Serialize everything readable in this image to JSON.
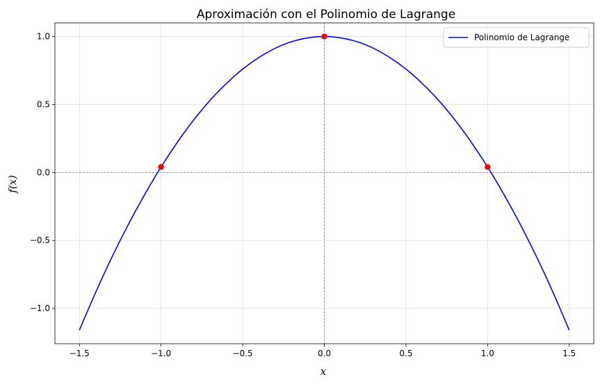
{
  "chart_data": {
    "type": "line",
    "title": "Aproximación con el Polinomio de Lagrange",
    "xlabel": "x",
    "ylabel": "f(x)",
    "xlim": [
      -1.65,
      1.65
    ],
    "ylim": [
      -1.26,
      1.1
    ],
    "x_ticks": [
      -1.5,
      -1.0,
      -0.5,
      0.0,
      0.5,
      1.0,
      1.5
    ],
    "x_tick_labels": [
      "−1.5",
      "−1.0",
      "−0.5",
      "0.0",
      "0.5",
      "1.0",
      "1.5"
    ],
    "y_ticks": [
      -1.0,
      -0.5,
      0.0,
      0.5,
      1.0
    ],
    "y_tick_labels": [
      "−1.0",
      "−0.5",
      "0.0",
      "0.5",
      "1.0"
    ],
    "grid": true,
    "legend_position": "top-right",
    "reference_lines": {
      "x": 0,
      "y": 0
    },
    "series": [
      {
        "name": "Polinomio de Lagrange",
        "color": "#0000ff",
        "x": [
          -1.5,
          -1.4,
          -1.3,
          -1.2,
          -1.1,
          -1.0,
          -0.9,
          -0.8,
          -0.7,
          -0.6,
          -0.5,
          -0.4,
          -0.3,
          -0.2,
          -0.1,
          0.0,
          0.1,
          0.2,
          0.3,
          0.4,
          0.5,
          0.6,
          0.7,
          0.8,
          0.9,
          1.0,
          1.1,
          1.2,
          1.3,
          1.4,
          1.5
        ],
        "y": [
          -1.16,
          -0.881,
          -0.621,
          -0.382,
          -0.162,
          0.04,
          0.222,
          0.386,
          0.53,
          0.654,
          0.76,
          0.846,
          0.914,
          0.962,
          0.99,
          1.0,
          0.99,
          0.962,
          0.914,
          0.846,
          0.76,
          0.654,
          0.53,
          0.386,
          0.222,
          0.04,
          -0.162,
          -0.382,
          -0.621,
          -0.881,
          -1.16
        ]
      }
    ],
    "points": {
      "color": "#ff0000",
      "x": [
        -1.0,
        0.0,
        1.0
      ],
      "y": [
        0.04,
        1.0,
        0.04
      ]
    }
  },
  "colors": {
    "grid": "#e0e0e0",
    "reference_line": "#808080",
    "axes": "#000000"
  }
}
